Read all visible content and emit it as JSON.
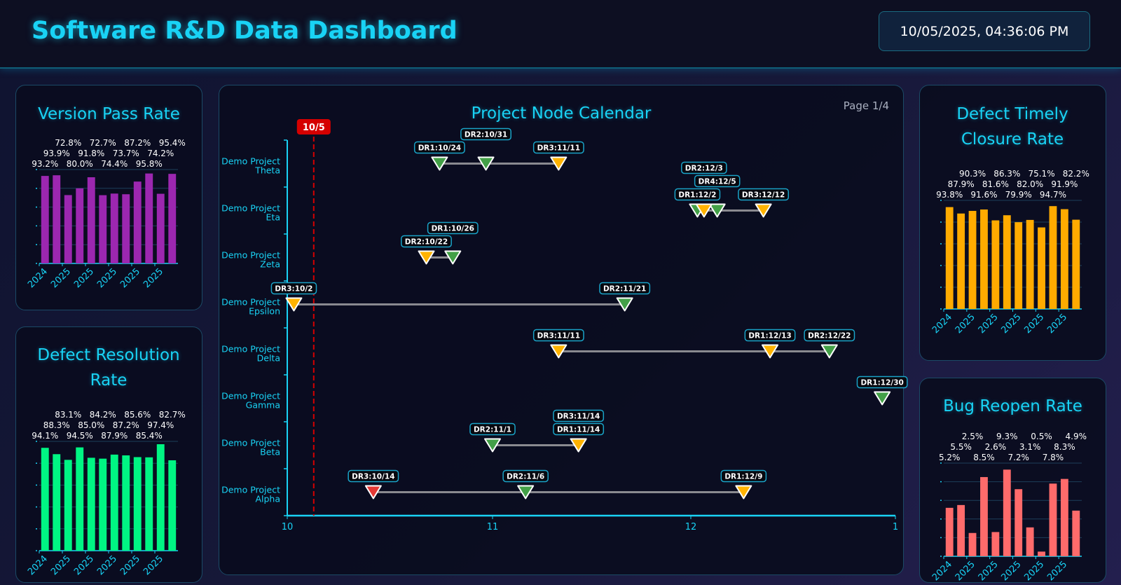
{
  "header": {
    "title": "Software R&D Data Dashboard",
    "datetime": "10/05/2025, 04:36:06 PM"
  },
  "colors": {
    "accent": "#19d3f5",
    "node_green": "#43a047",
    "node_orange": "#ffb300",
    "node_red": "#e53935",
    "today": "#d50000"
  },
  "calendar": {
    "title": "Project Node Calendar",
    "page": "Page 1/4",
    "today_label": "10/5",
    "today": "10/5",
    "x_ticks": [
      "10",
      "11",
      "12",
      "1"
    ],
    "projects": [
      {
        "name": "Demo Project Theta",
        "nodes": [
          {
            "label": "DR1:10/24",
            "date": "10/24",
            "color": "#43a047"
          },
          {
            "label": "DR2:10/31",
            "date": "10/31",
            "color": "#43a047"
          },
          {
            "label": "DR3:11/11",
            "date": "11/11",
            "color": "#ffb300"
          }
        ]
      },
      {
        "name": "Demo Project Eta",
        "nodes": [
          {
            "label": "DR1:12/2",
            "date": "12/2",
            "color": "#43a047"
          },
          {
            "label": "DR4:12/5",
            "date": "12/5",
            "color": "#43a047",
            "raise": true
          },
          {
            "label": "DR2:12/3",
            "date": "12/3",
            "color": "#ffb300"
          },
          {
            "label": "DR3:12/12",
            "date": "12/12",
            "color": "#ffb300"
          }
        ]
      },
      {
        "name": "Demo Project Zeta",
        "nodes": [
          {
            "label": "DR2:10/22",
            "date": "10/22",
            "color": "#ffb300"
          },
          {
            "label": "DR1:10/26",
            "date": "10/26",
            "color": "#43a047"
          }
        ]
      },
      {
        "name": "Demo Project Epsilon",
        "nodes": [
          {
            "label": "DR3:10/2",
            "date": "10/2",
            "color": "#ffb300"
          },
          {
            "label": "DR2:11/21",
            "date": "11/21",
            "color": "#43a047"
          }
        ]
      },
      {
        "name": "Demo Project Delta",
        "nodes": [
          {
            "label": "DR3:11/11",
            "date": "11/11",
            "color": "#ffb300"
          },
          {
            "label": "DR1:12/13",
            "date": "12/13",
            "color": "#ffb300"
          },
          {
            "label": "DR2:12/22",
            "date": "12/22",
            "color": "#43a047"
          }
        ]
      },
      {
        "name": "Demo Project Gamma",
        "nodes": [
          {
            "label": "DR1:12/30",
            "date": "12/30",
            "color": "#43a047"
          }
        ]
      },
      {
        "name": "Demo Project Beta",
        "nodes": [
          {
            "label": "DR2:11/1",
            "date": "11/1",
            "color": "#43a047"
          },
          {
            "label": "DR1:11/14",
            "date": "11/14",
            "color": "#ffb300"
          },
          {
            "label": "DR3:11/14",
            "date": "11/14",
            "color": "#ffb300"
          }
        ]
      },
      {
        "name": "Demo Project Alpha",
        "nodes": [
          {
            "label": "DR3:10/14",
            "date": "10/14",
            "color": "#e53935"
          },
          {
            "label": "DR2:11/6",
            "date": "11/6",
            "color": "#43a047"
          },
          {
            "label": "DR1:12/9",
            "date": "12/9",
            "color": "#ffb300"
          }
        ]
      }
    ]
  },
  "chart_data": [
    {
      "id": "version",
      "type": "bar",
      "title": "Version Pass Rate",
      "color": "#9c27b0",
      "ylim": [
        0,
        100
      ],
      "grid": true,
      "x_tick_labels": [
        "2024",
        "2025",
        "2025",
        "2025",
        "2025",
        "2025"
      ],
      "values": [
        93.2,
        93.9,
        72.8,
        80.0,
        91.8,
        72.7,
        74.4,
        73.7,
        87.2,
        95.8,
        74.2,
        95.4
      ]
    },
    {
      "id": "resolution",
      "type": "bar",
      "title": "Defect Resolution Rate",
      "color": "#00f583",
      "ylim": [
        0,
        100
      ],
      "grid": true,
      "x_tick_labels": [
        "2024",
        "2025",
        "2025",
        "2025",
        "2025",
        "2025"
      ],
      "values": [
        94.1,
        88.3,
        83.1,
        94.5,
        85.0,
        84.2,
        87.9,
        87.2,
        85.6,
        85.4,
        97.4,
        82.7
      ]
    },
    {
      "id": "timely",
      "type": "bar",
      "title": "Defect Timely Closure Rate",
      "color": "#ffab00",
      "ylim": [
        0,
        100
      ],
      "grid": true,
      "x_tick_labels": [
        "2024",
        "2025",
        "2025",
        "2025",
        "2025",
        "2025"
      ],
      "values": [
        93.8,
        87.9,
        90.3,
        91.6,
        81.6,
        86.3,
        79.9,
        82.0,
        75.1,
        94.7,
        91.9,
        82.2
      ]
    },
    {
      "id": "reopen",
      "type": "bar",
      "title": "Bug Reopen Rate",
      "color": "#ff6b6b",
      "ylim": [
        0,
        10
      ],
      "grid": true,
      "x_tick_labels": [
        "2024",
        "2025",
        "2025",
        "2025",
        "2025",
        "2025"
      ],
      "values": [
        5.2,
        5.5,
        2.5,
        8.5,
        2.6,
        9.3,
        7.2,
        3.1,
        0.5,
        7.8,
        8.3,
        4.9
      ]
    }
  ]
}
